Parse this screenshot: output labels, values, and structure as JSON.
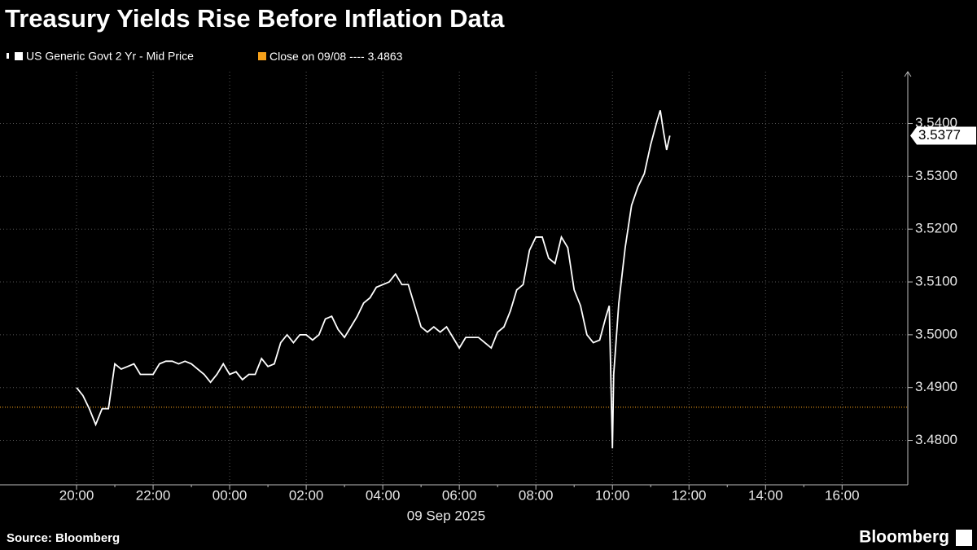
{
  "chart_data": {
    "type": "line",
    "title": "Treasury Yields Rise Before Inflation Data",
    "x_label": "09 Sep 2025",
    "source": "Source: Bloomberg",
    "brand": "Bloomberg",
    "x": [
      -240,
      -230,
      -220,
      -210,
      -200,
      -190,
      -180,
      -170,
      -160,
      -150,
      -140,
      -130,
      -120,
      -110,
      -100,
      -90,
      -80,
      -70,
      -60,
      -50,
      -40,
      -30,
      -20,
      -10,
      0,
      10,
      20,
      30,
      40,
      50,
      60,
      70,
      80,
      90,
      100,
      110,
      120,
      130,
      140,
      150,
      160,
      170,
      180,
      190,
      200,
      210,
      220,
      230,
      240,
      250,
      260,
      270,
      280,
      290,
      300,
      310,
      320,
      330,
      340,
      350,
      360,
      370,
      380,
      390,
      400,
      410,
      420,
      430,
      440,
      450,
      460,
      470,
      480,
      490,
      500,
      510,
      520,
      530,
      540,
      550,
      560,
      570,
      580,
      590,
      595,
      600,
      602,
      610,
      620,
      630,
      640,
      650,
      660,
      670,
      675,
      680,
      685,
      690
    ],
    "series": [
      {
        "name": "US Generic Govt 2 Yr - Mid Price",
        "color": "#ffffff",
        "values": [
          3.49,
          3.4885,
          3.486,
          3.483,
          3.486,
          3.486,
          3.4945,
          3.4935,
          3.494,
          3.4945,
          3.4925,
          3.4925,
          3.4925,
          3.4945,
          3.495,
          3.495,
          3.4945,
          3.495,
          3.4945,
          3.4935,
          3.4925,
          3.491,
          3.4925,
          3.4945,
          3.4925,
          3.493,
          3.4915,
          3.4925,
          3.4925,
          3.4955,
          3.494,
          3.4945,
          3.4985,
          3.5,
          3.4985,
          3.5,
          3.5,
          3.499,
          3.5,
          3.503,
          3.5035,
          3.501,
          3.4995,
          3.5015,
          3.5035,
          3.506,
          3.507,
          3.509,
          3.5095,
          3.51,
          3.5115,
          3.5095,
          3.5095,
          3.5055,
          3.5015,
          3.5005,
          3.5015,
          3.5005,
          3.5015,
          3.4995,
          3.4975,
          3.4995,
          3.4995,
          3.4995,
          3.4985,
          3.4975,
          3.5005,
          3.5015,
          3.5045,
          3.5085,
          3.5095,
          3.516,
          3.5185,
          3.5185,
          3.5145,
          3.5135,
          3.5185,
          3.5165,
          3.5085,
          3.5055,
          3.5,
          3.4985,
          3.499,
          3.5035,
          3.5055,
          3.4785,
          3.4925,
          3.506,
          3.5165,
          3.5245,
          3.528,
          3.5305,
          3.536,
          3.5405,
          3.5425,
          3.5385,
          3.535,
          3.5377
        ]
      }
    ],
    "last_value": 3.5377,
    "reference_line": {
      "label": "Close on 09/08 ----",
      "value": 3.4863,
      "color": "#f5a01a"
    },
    "xlim": [
      -360,
      1063
    ],
    "xticks": [
      {
        "value": -240,
        "label": "20:00"
      },
      {
        "value": -120,
        "label": "22:00"
      },
      {
        "value": 0,
        "label": "00:00"
      },
      {
        "value": 120,
        "label": "02:00"
      },
      {
        "value": 240,
        "label": "04:00"
      },
      {
        "value": 360,
        "label": "06:00"
      },
      {
        "value": 480,
        "label": "08:00"
      },
      {
        "value": 600,
        "label": "10:00"
      },
      {
        "value": 720,
        "label": "12:00"
      },
      {
        "value": 840,
        "label": "14:00"
      },
      {
        "value": 960,
        "label": "16:00"
      }
    ],
    "ylim": [
      3.4716,
      3.5498
    ],
    "yticks": [
      {
        "value": 3.48,
        "label": "3.4800"
      },
      {
        "value": 3.49,
        "label": "3.4900"
      },
      {
        "value": 3.5,
        "label": "3.5000"
      },
      {
        "value": 3.51,
        "label": "3.5100"
      },
      {
        "value": 3.52,
        "label": "3.5200"
      },
      {
        "value": 3.53,
        "label": "3.5300"
      },
      {
        "value": 3.54,
        "label": "3.5400"
      }
    ],
    "grid": true
  }
}
